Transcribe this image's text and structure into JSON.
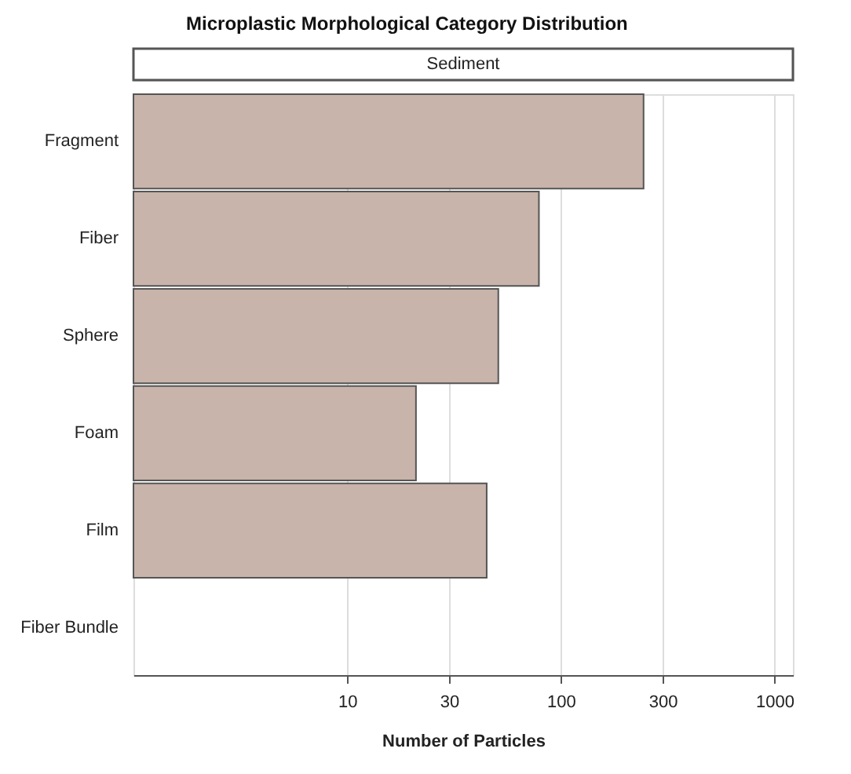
{
  "chart_data": {
    "type": "bar",
    "orientation": "horizontal",
    "title": "Microplastic Morphological Category Distribution",
    "subtitle": "Sediment",
    "xlabel": "Number of Particles",
    "categories": [
      "Fragment",
      "Fiber",
      "Sphere",
      "Foam",
      "Film",
      "Fiber Bundle"
    ],
    "values": [
      244,
      79,
      51,
      21,
      45,
      null
    ],
    "color": "#c8b4aa",
    "log": "x",
    "xlim": [
      1,
      1220
    ],
    "xticks": [
      10,
      30,
      100,
      300,
      1000
    ],
    "grid": "x",
    "legend": false
  }
}
